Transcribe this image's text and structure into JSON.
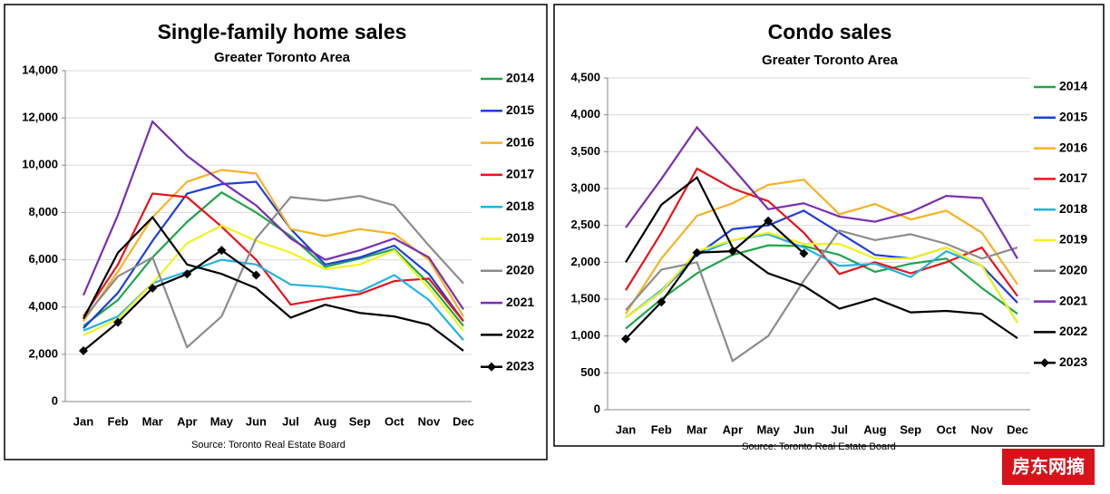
{
  "chart_data": [
    {
      "type": "line",
      "title": "Single-family home sales",
      "subtitle": "Greater Toronto Area",
      "source": "Source: Toronto Real Estate Board",
      "categories": [
        "Jan",
        "Feb",
        "Mar",
        "Apr",
        "May",
        "Jun",
        "Jul",
        "Aug",
        "Sep",
        "Oct",
        "Nov",
        "Dec"
      ],
      "ylim": [
        0,
        14000
      ],
      "yticks": [
        0,
        {
          "value": 2000,
          "label": "2,000"
        },
        {
          "value": 4000,
          "label": "4,000"
        },
        {
          "value": 6000,
          "label": "6,000"
        },
        {
          "value": 8000,
          "label": "8,000"
        },
        {
          "value": 10000,
          "label": "10,000"
        },
        {
          "value": 12000,
          "label": "12,000"
        },
        {
          "value": 14000,
          "label": "14,000"
        }
      ],
      "grid": true,
      "legend": "right",
      "series": [
        {
          "name": "2014",
          "color": "#1fa64a",
          "values": [
            3200,
            4300,
            6100,
            7600,
            8850,
            8000,
            7000,
            5700,
            6050,
            6450,
            5000,
            3200
          ]
        },
        {
          "name": "2015",
          "color": "#1f3fd6",
          "values": [
            3100,
            4600,
            6800,
            8800,
            9200,
            9300,
            7300,
            5800,
            6100,
            6600,
            5400,
            3400
          ]
        },
        {
          "name": "2016",
          "color": "#f5b324",
          "values": [
            3400,
            5500,
            7800,
            9300,
            9800,
            9650,
            7300,
            7000,
            7300,
            7100,
            6000,
            3600
          ]
        },
        {
          "name": "2017",
          "color": "#e8141c",
          "values": [
            3600,
            5800,
            8800,
            8650,
            7400,
            6000,
            4100,
            4350,
            4550,
            5100,
            5200,
            3400
          ]
        },
        {
          "name": "2018",
          "color": "#22b2e2",
          "values": [
            3000,
            3600,
            5000,
            5500,
            6000,
            5800,
            4950,
            4850,
            4650,
            5350,
            4300,
            2600
          ]
        },
        {
          "name": "2019",
          "color": "#f2f21e",
          "values": [
            2800,
            3500,
            5000,
            6700,
            7450,
            6800,
            6300,
            5600,
            5800,
            6400,
            4800,
            3000
          ]
        },
        {
          "name": "2020",
          "color": "#8c8c8c",
          "values": [
            3500,
            5300,
            6100,
            2300,
            3600,
            6900,
            8650,
            8500,
            8700,
            8300,
            6600,
            5000
          ]
        },
        {
          "name": "2021",
          "color": "#7a2fb0",
          "values": [
            4500,
            7900,
            11850,
            10400,
            9300,
            8300,
            6900,
            6000,
            6400,
            6900,
            6100,
            3900
          ]
        },
        {
          "name": "2022",
          "color": "#000000",
          "values": [
            3500,
            6300,
            7800,
            5800,
            5400,
            4800,
            3550,
            4100,
            3750,
            3600,
            3250,
            2150
          ]
        },
        {
          "name": "2023",
          "color": "#000000",
          "marker": "diamond",
          "values": [
            2150,
            3350,
            4800,
            5400,
            6400,
            5350,
            null,
            null,
            null,
            null,
            null,
            null
          ]
        }
      ]
    },
    {
      "type": "line",
      "title": "Condo sales",
      "subtitle": "Greater Toronto Area",
      "source": "Source: Toronto Real Estate Board",
      "categories": [
        "Jan",
        "Feb",
        "Mar",
        "Apr",
        "May",
        "Jun",
        "Jul",
        "Aug",
        "Sep",
        "Oct",
        "Nov",
        "Dec"
      ],
      "ylim": [
        0,
        4500
      ],
      "yticks": [
        0,
        500,
        {
          "value": 1000,
          "label": "1,000"
        },
        {
          "value": 1500,
          "label": "1,500"
        },
        {
          "value": 2000,
          "label": "2,000"
        },
        {
          "value": 2500,
          "label": "2,500"
        },
        {
          "value": 3000,
          "label": "3,000"
        },
        {
          "value": 3500,
          "label": "3,500"
        },
        {
          "value": 4000,
          "label": "4,000"
        },
        {
          "value": 4500,
          "label": "4,500"
        }
      ],
      "grid": true,
      "legend": "right",
      "series": [
        {
          "name": "2014",
          "color": "#1fa64a",
          "values": [
            1100,
            1500,
            1850,
            2100,
            2230,
            2220,
            2100,
            1870,
            1980,
            2050,
            1650,
            1300
          ]
        },
        {
          "name": "2015",
          "color": "#1f3fd6",
          "values": [
            1250,
            1600,
            2100,
            2450,
            2500,
            2700,
            2400,
            2100,
            2050,
            2200,
            1950,
            1450
          ]
        },
        {
          "name": "2016",
          "color": "#f5b324",
          "values": [
            1300,
            2050,
            2630,
            2800,
            3050,
            3120,
            2650,
            2790,
            2580,
            2700,
            2400,
            1700
          ]
        },
        {
          "name": "2017",
          "color": "#e8141c",
          "values": [
            1620,
            2400,
            3270,
            3000,
            2830,
            2400,
            1840,
            2000,
            1850,
            2000,
            2200,
            1540
          ]
        },
        {
          "name": "2018",
          "color": "#22b2e2",
          "values": [
            1250,
            1620,
            2100,
            2300,
            2380,
            2200,
            1950,
            1980,
            1800,
            2150,
            1950,
            1180
          ]
        },
        {
          "name": "2019",
          "color": "#f2f21e",
          "values": [
            1250,
            1600,
            2150,
            2300,
            2400,
            2250,
            2250,
            2050,
            2050,
            2200,
            1950,
            1180
          ]
        },
        {
          "name": "2020",
          "color": "#8c8c8c",
          "values": [
            1350,
            1900,
            2000,
            660,
            1000,
            1750,
            2430,
            2300,
            2380,
            2250,
            2050,
            2200
          ]
        },
        {
          "name": "2021",
          "color": "#7a2fb0",
          "values": [
            2470,
            3130,
            3830,
            3280,
            2720,
            2800,
            2620,
            2550,
            2680,
            2900,
            2870,
            2050
          ]
        },
        {
          "name": "2022",
          "color": "#000000",
          "values": [
            2000,
            2780,
            3150,
            2200,
            1850,
            1680,
            1370,
            1510,
            1320,
            1340,
            1300,
            970
          ]
        },
        {
          "name": "2023",
          "color": "#000000",
          "marker": "diamond",
          "values": [
            960,
            1460,
            2130,
            2150,
            2560,
            2120,
            null,
            null,
            null,
            null,
            null,
            null
          ]
        }
      ]
    }
  ],
  "watermark": "房东网摘"
}
